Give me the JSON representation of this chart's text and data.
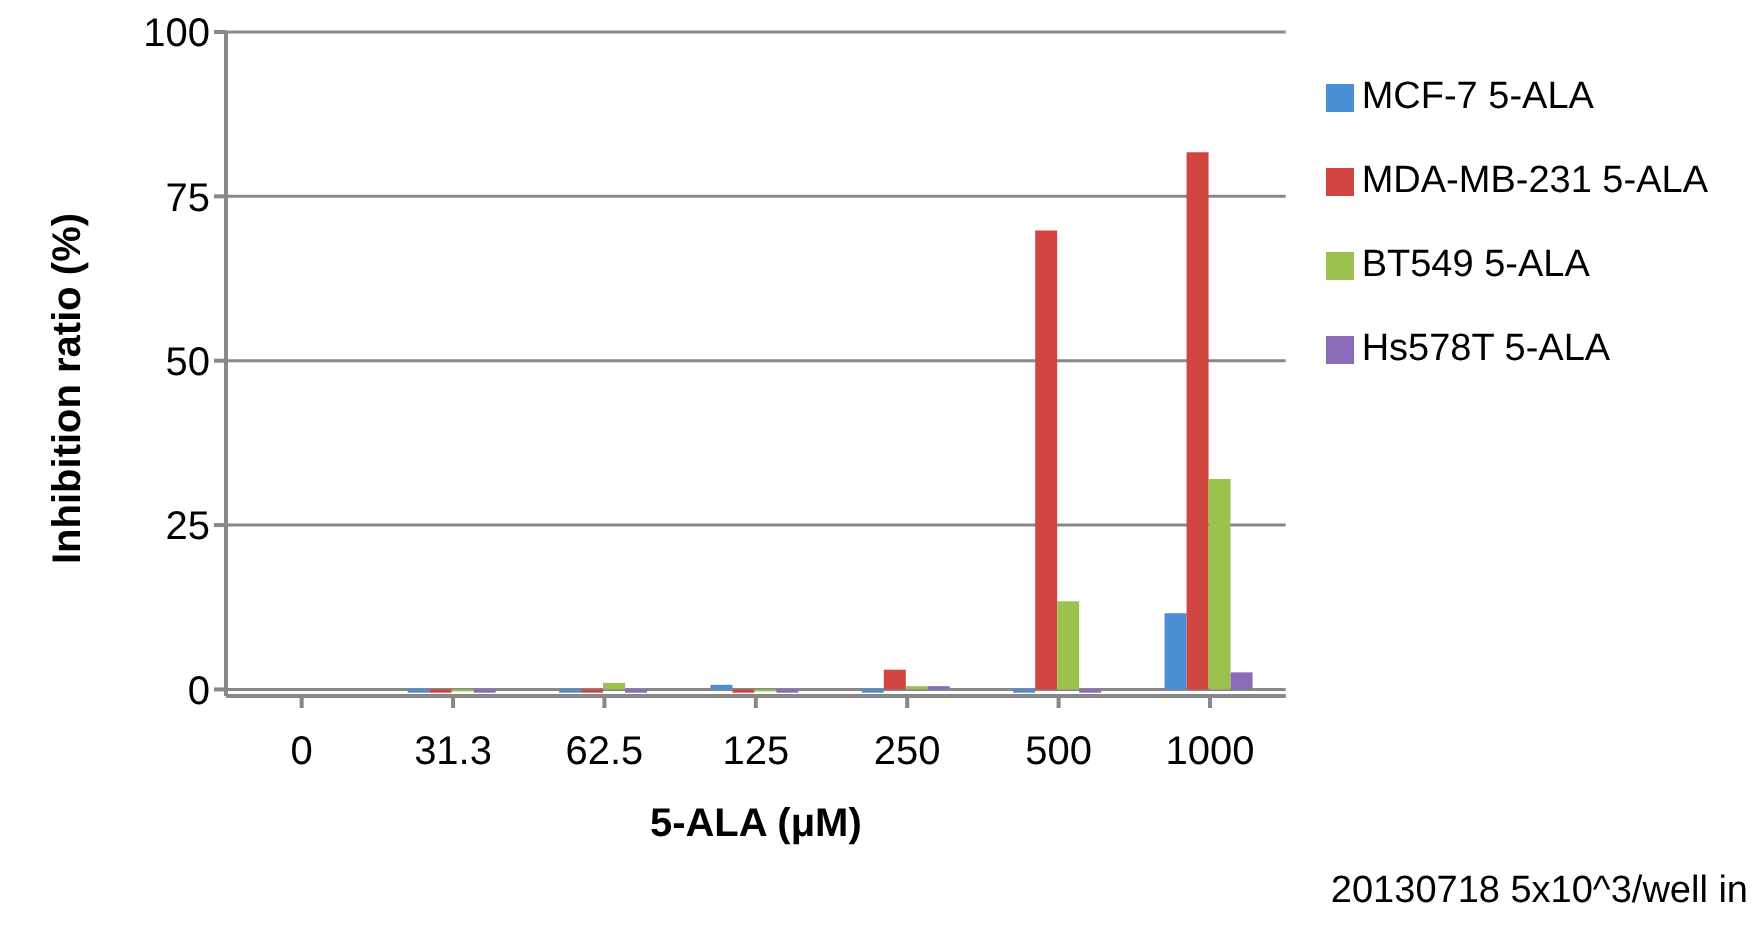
{
  "chart_data": {
    "type": "bar",
    "xlabel": "5-ALA (μM)",
    "ylabel": "Inhibition ratio (%)",
    "categories": [
      "0",
      "31.3",
      "62.5",
      "125",
      "250",
      "500",
      "1000"
    ],
    "series": [
      {
        "name": "MCF-7 5-ALA",
        "color": "#4a8fd4",
        "values": [
          0,
          -0.5,
          -0.5,
          0.7,
          -0.5,
          -0.5,
          11.6
        ]
      },
      {
        "name": "MDA-MB-231 5-ALA",
        "color": "#d0453f",
        "values": [
          0,
          -0.5,
          -0.5,
          -0.5,
          3,
          69.8,
          81.7
        ]
      },
      {
        "name": "BT549 5-ALA",
        "color": "#9bc24f",
        "values": [
          0,
          -0.3,
          1,
          -0.3,
          0.5,
          13.4,
          32
        ]
      },
      {
        "name": "Hs578T 5-ALA",
        "color": "#8a6bb8",
        "values": [
          0,
          -0.5,
          -0.5,
          -0.5,
          0.5,
          -0.5,
          2.6
        ]
      }
    ],
    "ylim": [
      -1,
      100
    ],
    "yticks": [
      0,
      25,
      50,
      75,
      100
    ],
    "grid": "y",
    "legend": "right",
    "annotations": [
      "20130718 5x10^3/well in"
    ]
  }
}
